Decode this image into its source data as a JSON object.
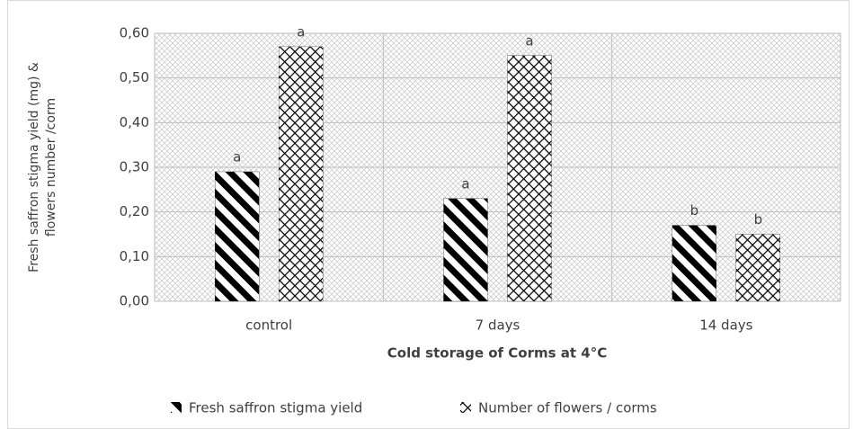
{
  "chart_data": {
    "type": "bar",
    "categories": [
      "control",
      "7 days",
      "14 days"
    ],
    "series": [
      {
        "name": "Fresh saffron stigma yield",
        "color": "#000000",
        "pattern": "stripes",
        "values": [
          0.29,
          0.23,
          0.17
        ],
        "letters": [
          "a",
          "a",
          "b"
        ]
      },
      {
        "name": "Number of flowers / corms",
        "color": "#000000",
        "pattern": "crosshatch",
        "values": [
          0.57,
          0.55,
          0.15
        ],
        "letters": [
          "a",
          "a",
          "b"
        ]
      }
    ],
    "x_label": "Cold storage of Corms at 4°C",
    "y_label": [
      "Fresh saffron stigma yield (mg) &",
      "flowers number /corm"
    ],
    "ylim": [
      0,
      0.6
    ],
    "yticks": [
      {
        "value": 0,
        "label": "0,00"
      },
      {
        "value": 0.1,
        "label": "0,10"
      },
      {
        "value": 0.2,
        "label": "0,20"
      },
      {
        "value": 0.3,
        "label": "0,30"
      },
      {
        "value": 0.4,
        "label": "0,40"
      },
      {
        "value": 0.5,
        "label": "0,50"
      },
      {
        "value": 0.6,
        "label": "0,60"
      }
    ],
    "grid": true,
    "legend": "bottom"
  }
}
